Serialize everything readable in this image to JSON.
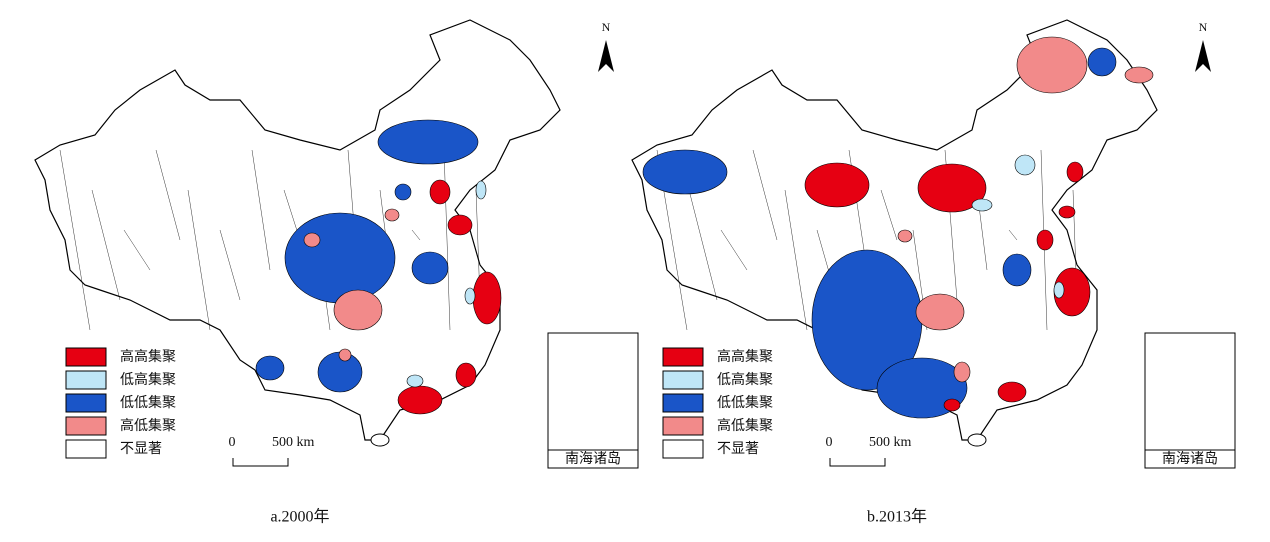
{
  "panels": [
    {
      "caption": "a.2000年"
    },
    {
      "caption": "b.2013年"
    }
  ],
  "legend": [
    {
      "label": "高高集聚",
      "color": "#e60012"
    },
    {
      "label": "低高集聚",
      "color": "#bfe6f7"
    },
    {
      "label": "低低集聚",
      "color": "#1a55c8"
    },
    {
      "label": "高低集聚",
      "color": "#f28a8a"
    },
    {
      "label": "不显著",
      "color": "#ffffff"
    }
  ],
  "north": "N",
  "scale_zero": "0",
  "scale_label": "500 km",
  "inset_label": "南海诸岛"
}
